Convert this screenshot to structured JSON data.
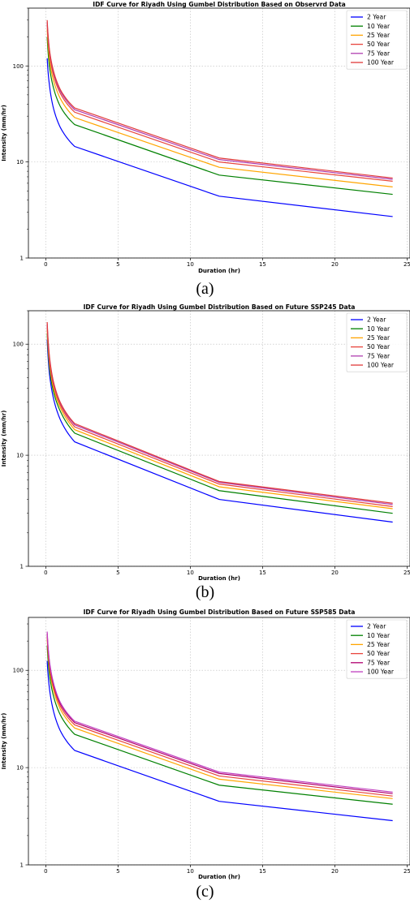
{
  "chart_data": [
    {
      "type": "line",
      "title": "IDF Curve for Riyadh Using Gumbel Distribution Based on Observrd Data",
      "xlabel": "Duration (hr)",
      "ylabel": "Intensity (mm/hr)",
      "xlim": [
        -1.2,
        25.2
      ],
      "ylim": [
        1,
        400
      ],
      "yscale": "log",
      "grid": true,
      "legend_position": "top-right",
      "xticks": [
        "0",
        "5",
        "10",
        "15",
        "20",
        "25"
      ],
      "yticks": [
        "1",
        "10",
        "100"
      ],
      "x": [
        0.1,
        0.25,
        0.5,
        1,
        2,
        12,
        24
      ],
      "series": [
        {
          "name": "2 Year",
          "color": "#0000ff",
          "values": [
            120,
            64,
            38,
            23,
            14.5,
            4.4,
            2.7
          ]
        },
        {
          "name": "10 Year",
          "color": "#008000",
          "values": [
            200,
            100,
            62,
            38,
            24.5,
            7.3,
            4.6
          ]
        },
        {
          "name": "25 Year",
          "color": "#ffa500",
          "values": [
            240,
            120,
            74,
            46,
            29,
            8.8,
            5.5
          ]
        },
        {
          "name": "50 Year",
          "color": "#e8453c",
          "values": [
            270,
            136,
            84,
            52,
            33,
            10,
            6.3
          ]
        },
        {
          "name": "75 Year",
          "color": "#b03fb0",
          "values": [
            285,
            145,
            90,
            55,
            35,
            10.6,
            6.6
          ]
        },
        {
          "name": "100 Year",
          "color": "#e03a3a",
          "values": [
            300,
            150,
            93,
            57,
            36.5,
            11,
            6.8
          ]
        }
      ],
      "caption": "(a)"
    },
    {
      "type": "line",
      "title": "IDF Curve for Riyadh Using Gumbel Distribution Based on Future SSP245 Data",
      "xlabel": "Duration (hr)",
      "ylabel": "Intensity (mm/hr)",
      "xlim": [
        -1.2,
        25.2
      ],
      "ylim": [
        1,
        200
      ],
      "yscale": "log",
      "grid": true,
      "legend_position": "top-right",
      "xticks": [
        "0",
        "5",
        "10",
        "15",
        "20",
        "25"
      ],
      "yticks": [
        "1",
        "10",
        "100"
      ],
      "x": [
        0.1,
        0.25,
        0.5,
        1,
        2,
        12,
        24
      ],
      "series": [
        {
          "name": "2 Year",
          "color": "#0000ff",
          "values": [
            110,
            55,
            34,
            21,
            13.2,
            4.0,
            2.5
          ]
        },
        {
          "name": "10 Year",
          "color": "#008000",
          "values": [
            125,
            63,
            39,
            25,
            15.8,
            4.8,
            3.0
          ]
        },
        {
          "name": "25 Year",
          "color": "#ffa500",
          "values": [
            135,
            68,
            42,
            27,
            17,
            5.2,
            3.3
          ]
        },
        {
          "name": "50 Year",
          "color": "#e8453c",
          "values": [
            145,
            73,
            45,
            28.5,
            18,
            5.5,
            3.45
          ]
        },
        {
          "name": "75 Year",
          "color": "#b03fb0",
          "values": [
            152,
            76,
            47,
            29.5,
            18.8,
            5.7,
            3.6
          ]
        },
        {
          "name": "100 Year",
          "color": "#e03a3a",
          "values": [
            158,
            79,
            48,
            30,
            19.3,
            5.8,
            3.7
          ]
        }
      ],
      "caption": "(b)"
    },
    {
      "type": "line",
      "title": "IDF Curve for Riyadh Using Gumbel Distribution Based on Future SSP585 Data",
      "xlabel": "Duration (hr)",
      "ylabel": "Intensity (mm/hr)",
      "xlim": [
        -1.2,
        25.2
      ],
      "ylim": [
        1,
        350
      ],
      "yscale": "log",
      "grid": true,
      "legend_position": "top-right",
      "xticks": [
        "0",
        "5",
        "10",
        "15",
        "20",
        "25"
      ],
      "yticks": [
        "1",
        "10",
        "100"
      ],
      "x": [
        0.1,
        0.25,
        0.5,
        1,
        2,
        12,
        24
      ],
      "series": [
        {
          "name": "2 Year",
          "color": "#0000ff",
          "values": [
            125,
            66,
            40,
            24,
            15,
            4.5,
            2.85
          ]
        },
        {
          "name": "10 Year",
          "color": "#008000",
          "values": [
            180,
            92,
            57,
            35,
            22,
            6.6,
            4.2
          ]
        },
        {
          "name": "25 Year",
          "color": "#ffa500",
          "values": [
            210,
            106,
            66,
            40,
            25.5,
            7.6,
            4.8
          ]
        },
        {
          "name": "50 Year",
          "color": "#e8453c",
          "values": [
            225,
            114,
            71,
            43,
            27.5,
            8.2,
            5.1
          ]
        },
        {
          "name": "75 Year",
          "color": "#b0006e",
          "values": [
            240,
            122,
            75,
            45.5,
            29,
            8.7,
            5.4
          ]
        },
        {
          "name": "100 Year",
          "color": "#c040c0",
          "values": [
            250,
            127,
            78,
            47,
            30,
            9.0,
            5.6
          ]
        }
      ],
      "caption": "(c)"
    }
  ]
}
